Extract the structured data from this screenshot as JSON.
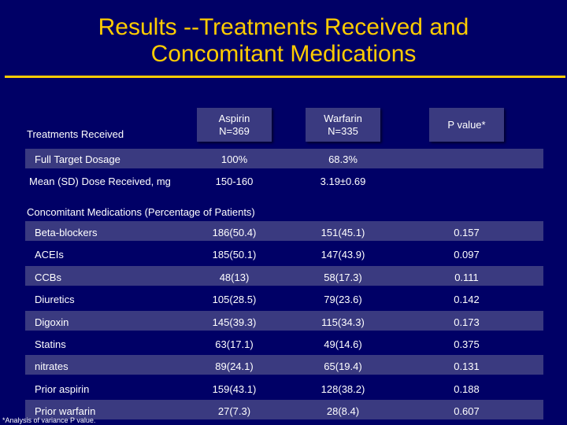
{
  "title_line1": "Results --Treatments Received and",
  "title_line2": "Concomitant Medications",
  "headers": {
    "treatments": "Treatments Received",
    "aspirin_name": "Aspirin",
    "aspirin_n": "N=369",
    "warfarin_name": "Warfarin",
    "warfarin_n": "N=335",
    "p_value": "P value*"
  },
  "treatment_rows": [
    {
      "label": "Full Target Dosage",
      "aspirin": "100%",
      "warfarin": "68.3%"
    },
    {
      "label": "Mean (SD) Dose Received, mg",
      "aspirin": "150-160",
      "warfarin": "3.19±0.69"
    }
  ],
  "section_label": "Concomitant Medications (Percentage of Patients)",
  "med_rows": [
    {
      "label": "Beta-blockers",
      "aspirin": "186(50.4)",
      "warfarin": "151(45.1)",
      "p": "0.157"
    },
    {
      "label": "ACEIs",
      "aspirin": "185(50.1)",
      "warfarin": "147(43.9)",
      "p": "0.097"
    },
    {
      "label": "CCBs",
      "aspirin": "48(13)",
      "warfarin": "58(17.3)",
      "p": "0.111"
    },
    {
      "label": "Diuretics",
      "aspirin": "105(28.5)",
      "warfarin": "79(23.6)",
      "p": "0.142"
    },
    {
      "label": "Digoxin",
      "aspirin": "145(39.3)",
      "warfarin": "115(34.3)",
      "p": "0.173"
    },
    {
      "label": "Statins",
      "aspirin": "63(17.1)",
      "warfarin": "49(14.6)",
      "p": "0.375"
    },
    {
      "label": "nitrates",
      "aspirin": "89(24.1)",
      "warfarin": "65(19.4)",
      "p": "0.131"
    },
    {
      "label": "Prior aspirin",
      "aspirin": "159(43.1)",
      "warfarin": "128(38.2)",
      "p": "0.188"
    },
    {
      "label": "Prior warfarin",
      "aspirin": "27(7.3)",
      "warfarin": "28(8.4)",
      "p": "0.607"
    }
  ],
  "footnote": "*Analysis of variance P value.",
  "colors": {
    "background": "#000066",
    "title": "#ffcc00",
    "band": "#3a3a80",
    "text": "#ffffff"
  }
}
